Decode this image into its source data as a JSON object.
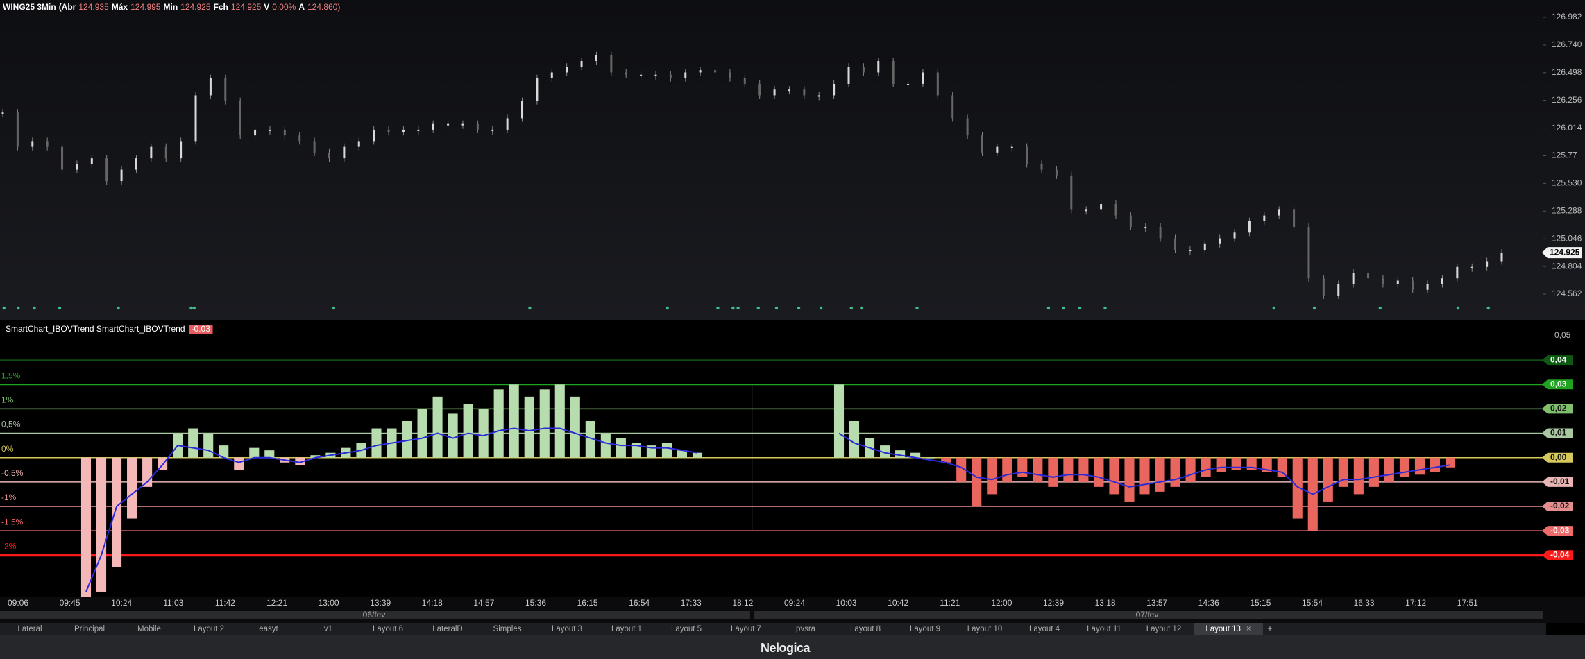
{
  "header": {
    "symbol": "WING25 3Min",
    "ohlc": [
      {
        "label": "(Abr",
        "value": "124.935"
      },
      {
        "label": "Máx",
        "value": "124.995"
      },
      {
        "label": "Min",
        "value": "124.925"
      },
      {
        "label": "Fch",
        "value": "124.925"
      },
      {
        "label": "V",
        "value": "0.00%"
      },
      {
        "label": "A",
        "value": "124.860)"
      }
    ]
  },
  "price_chart": {
    "type": "candlestick",
    "color": "#d9d9d9",
    "closes": [
      126.15,
      125.85,
      125.9,
      125.85,
      125.65,
      125.7,
      125.75,
      125.55,
      125.65,
      125.75,
      125.85,
      125.75,
      125.9,
      126.3,
      126.45,
      126.25,
      125.95,
      126.0,
      126.0,
      125.95,
      125.9,
      125.8,
      125.75,
      125.85,
      125.9,
      126.0,
      125.98,
      126.0,
      126.0,
      126.05,
      126.05,
      126.05,
      126.0,
      126.0,
      126.1,
      126.25,
      126.45,
      126.5,
      126.55,
      126.6,
      126.65,
      126.5,
      126.48,
      126.48,
      126.48,
      126.45,
      126.5,
      126.52,
      126.5,
      126.45,
      126.4,
      126.3,
      126.35,
      126.35,
      126.3,
      126.3,
      126.4,
      126.55,
      126.5,
      126.6,
      126.4,
      126.4,
      126.5,
      126.3,
      126.1,
      125.95,
      125.8,
      125.85,
      125.85,
      125.7,
      125.65,
      125.6,
      125.3,
      125.3,
      125.35,
      125.25,
      125.15,
      125.15,
      125.05,
      124.95,
      124.95,
      125.0,
      125.05,
      125.1,
      125.2,
      125.25,
      125.3,
      125.15,
      124.7,
      124.55,
      124.65,
      124.75,
      124.7,
      124.65,
      124.68,
      124.6,
      124.65,
      124.7,
      124.8,
      124.8,
      124.85,
      124.925
    ],
    "ylim": [
      124.562,
      126.982
    ],
    "yticks": [
      {
        "value": 126.982,
        "label": "126.982"
      },
      {
        "value": 126.74,
        "label": "126.740"
      },
      {
        "value": 126.498,
        "label": "126.498"
      },
      {
        "value": 126.256,
        "label": "126.256"
      },
      {
        "value": 126.014,
        "label": "126.014"
      },
      {
        "value": 125.772,
        "label": "125.77"
      },
      {
        "value": 125.53,
        "label": "125.530"
      },
      {
        "value": 125.288,
        "label": "125.288"
      },
      {
        "value": 125.046,
        "label": "125.046"
      },
      {
        "value": 124.804,
        "label": "124.804"
      },
      {
        "value": 124.562,
        "label": "124.562"
      }
    ],
    "last_price": {
      "value": 124.925,
      "label": "124.925"
    }
  },
  "indicator": {
    "type": "histogram",
    "title": "SmartChart_IBOVTrend SmartChart_IBOVTrend",
    "badge": "-0.03",
    "ylim": [
      -0.057,
      0.05
    ],
    "top_tick": {
      "value": 0.05,
      "label": "0,05"
    },
    "levels": [
      {
        "value": 0.04,
        "label": "0,04"
      },
      {
        "value": 0.03,
        "label": "0,03"
      },
      {
        "value": 0.02,
        "label": "0,02"
      },
      {
        "value": 0.01,
        "label": "0,01"
      },
      {
        "value": 0,
        "label": "0,00"
      },
      {
        "value": -0.01,
        "label": "-0,01"
      },
      {
        "value": -0.02,
        "label": "-0,02"
      },
      {
        "value": -0.03,
        "label": "-0,03"
      },
      {
        "value": -0.04,
        "label": "-0,04"
      }
    ],
    "level_colors": [
      "#0f5a12",
      "#1fa321",
      "#7fbf6e",
      "#a9c7a0",
      "#d6c85a",
      "#e8b4b4",
      "#e58d8d",
      "#ef6a6a",
      "#ff1a1a"
    ],
    "pct_labels": [
      {
        "value": 0.03,
        "label": "1,5%"
      },
      {
        "value": 0.02,
        "label": "1%"
      },
      {
        "value": 0.01,
        "label": "0,5%"
      },
      {
        "value": 0,
        "label": "0%"
      },
      {
        "value": -0.01,
        "label": "-0,5%"
      },
      {
        "value": -0.02,
        "label": "-1%"
      },
      {
        "value": -0.03,
        "label": "-1,5%"
      },
      {
        "value": -0.04,
        "label": "-2%"
      }
    ],
    "trend_color": "#2a2ad8",
    "sessions": [
      {
        "positive_color": "#b7dcae",
        "negative_color": "#f4b8b8",
        "histogram": [
          -0.057,
          -0.055,
          -0.045,
          -0.025,
          -0.012,
          -0.005,
          0.01,
          0.012,
          0.01,
          0.005,
          -0.005,
          0.004,
          0.003,
          -0.002,
          -0.003,
          0.001,
          0.002,
          0.004,
          0.006,
          0.012,
          0.012,
          0.015,
          0.02,
          0.025,
          0.018,
          0.022,
          0.02,
          0.028,
          0.03,
          0.025,
          0.028,
          0.03,
          0.025,
          0.015,
          0.01,
          0.008,
          0.006,
          0.005,
          0.006,
          0.003,
          0.002
        ],
        "trend": [
          -0.055,
          -0.04,
          -0.02,
          -0.015,
          -0.01,
          -0.003,
          0.005,
          0.004,
          0.003,
          0,
          -0.002,
          0,
          0,
          -0.001,
          -0.002,
          0,
          0.001,
          0.002,
          0.003,
          0.005,
          0.006,
          0.007,
          0.008,
          0.01,
          0.008,
          0.01,
          0.009,
          0.011,
          0.012,
          0.011,
          0.012,
          0.012,
          0.01,
          0.008,
          0.006,
          0.005,
          0.005,
          0.004,
          0.004,
          0.003,
          0.002
        ]
      },
      {
        "positive_color": "#b7dcae",
        "negative_color": "#e8665e",
        "histogram": [
          0.03,
          0.015,
          0.008,
          0.005,
          0.003,
          0.002,
          0,
          -0.002,
          -0.01,
          -0.02,
          -0.015,
          -0.01,
          -0.008,
          -0.01,
          -0.012,
          -0.01,
          -0.01,
          -0.012,
          -0.015,
          -0.018,
          -0.015,
          -0.014,
          -0.012,
          -0.01,
          -0.008,
          -0.006,
          -0.005,
          -0.005,
          -0.006,
          -0.008,
          -0.025,
          -0.03,
          -0.018,
          -0.012,
          -0.015,
          -0.012,
          -0.01,
          -0.008,
          -0.007,
          -0.006,
          -0.004
        ],
        "trend": [
          0.01,
          0.006,
          0.004,
          0.002,
          0.001,
          0,
          -0.001,
          -0.002,
          -0.004,
          -0.008,
          -0.009,
          -0.007,
          -0.006,
          -0.007,
          -0.008,
          -0.007,
          -0.007,
          -0.008,
          -0.01,
          -0.012,
          -0.011,
          -0.01,
          -0.009,
          -0.007,
          -0.005,
          -0.004,
          -0.004,
          -0.004,
          -0.005,
          -0.006,
          -0.012,
          -0.015,
          -0.012,
          -0.009,
          -0.009,
          -0.008,
          -0.007,
          -0.006,
          -0.005,
          -0.004,
          -0.003
        ]
      }
    ]
  },
  "time_axis": [
    "09:06",
    "09:45",
    "10:24",
    "11:03",
    "11:42",
    "12:21",
    "13:00",
    "13:39",
    "14:18",
    "14:57",
    "15:36",
    "16:15",
    "16:54",
    "17:33",
    "18:12",
    "09:24",
    "10:03",
    "10:42",
    "11:21",
    "12:00",
    "12:39",
    "13:18",
    "13:57",
    "14:36",
    "15:15",
    "15:54",
    "16:33",
    "17:12",
    "17:51"
  ],
  "dates": [
    "06/fev",
    "07/fev"
  ],
  "tabs": [
    "Lateral",
    "Principal",
    "Mobile",
    "Layout 2",
    "easyt",
    "v1",
    "Layout 6",
    "LateralD",
    "Simples",
    "Layout 3",
    "Layout 1",
    "Layout 5",
    "Layout 7",
    "pvsra",
    "Layout 8",
    "Layout 9",
    "Layout 10",
    "Layout 4",
    "Layout 11",
    "Layout 12",
    "Layout 13"
  ],
  "active_tab_close": "×",
  "add_tab": "+",
  "logo": "Nelogica"
}
